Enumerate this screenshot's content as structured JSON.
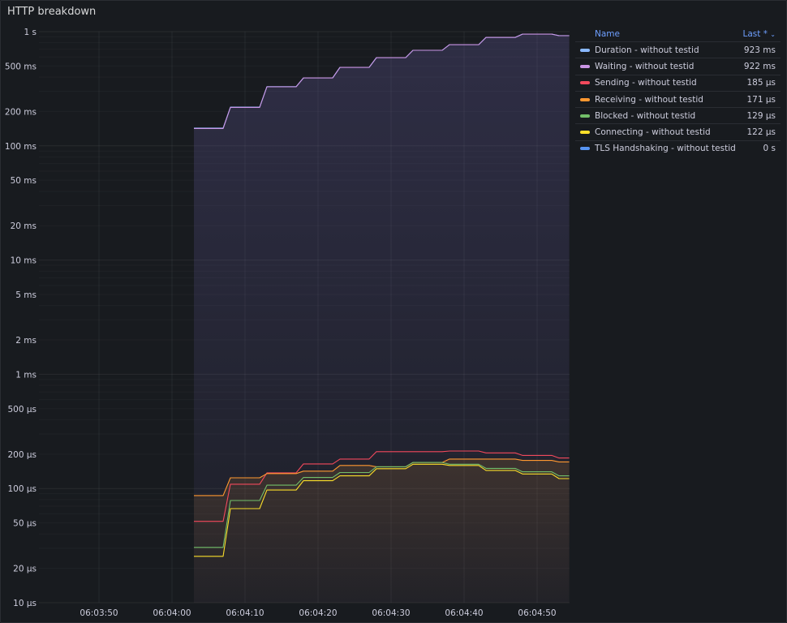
{
  "panel": {
    "title": "HTTP breakdown"
  },
  "legend": {
    "header_name": "Name",
    "header_value": "Last *",
    "sort_icon": "chevron-down-icon"
  },
  "chart_data": {
    "type": "line",
    "title": "HTTP breakdown",
    "y_scale": "log10",
    "y_unit": "µs",
    "ylim": [
      10,
      1000000
    ],
    "xlim_seconds_from_06_04_00": [
      -18.2,
      54.4
    ],
    "y_ticks": [
      {
        "v": 1000000,
        "label": "1 s"
      },
      {
        "v": 500000,
        "label": "500 ms"
      },
      {
        "v": 200000,
        "label": "200 ms"
      },
      {
        "v": 100000,
        "label": "100 ms"
      },
      {
        "v": 50000,
        "label": "50 ms"
      },
      {
        "v": 20000,
        "label": "20 ms"
      },
      {
        "v": 10000,
        "label": "10 ms"
      },
      {
        "v": 5000,
        "label": "5 ms"
      },
      {
        "v": 2000,
        "label": "2 ms"
      },
      {
        "v": 1000,
        "label": "1 ms"
      },
      {
        "v": 500,
        "label": "500 µs"
      },
      {
        "v": 200,
        "label": "200 µs"
      },
      {
        "v": 100,
        "label": "100 µs"
      },
      {
        "v": 50,
        "label": "50 µs"
      },
      {
        "v": 20,
        "label": "20 µs"
      },
      {
        "v": 10,
        "label": "10 µs"
      }
    ],
    "x_ticks": [
      {
        "t": -10,
        "label": "06:03:50"
      },
      {
        "t": 0,
        "label": "06:04:00"
      },
      {
        "t": 10,
        "label": "06:04:10"
      },
      {
        "t": 20,
        "label": "06:04:20"
      },
      {
        "t": 30,
        "label": "06:04:30"
      },
      {
        "t": 40,
        "label": "06:04:40"
      },
      {
        "t": 50,
        "label": "06:04:50"
      }
    ],
    "step_start_times": [
      3,
      8,
      13,
      18,
      23,
      28,
      33,
      38,
      43,
      48,
      53
    ],
    "series": [
      {
        "name": "Duration - without testid",
        "last": "923 ms",
        "color": "#8ab8ff",
        "values": [
          143000,
          218000,
          330000,
          394000,
          487000,
          593000,
          687000,
          770000,
          891000,
          952000,
          923000
        ]
      },
      {
        "name": "Waiting - without testid",
        "last": "922 ms",
        "color": "#ca95e5",
        "values": [
          142000,
          217000,
          329000,
          393000,
          486000,
          592000,
          686000,
          769000,
          890000,
          951000,
          922000
        ]
      },
      {
        "name": "Sending - without testid",
        "last": "185 µs",
        "color": "#f2495c",
        "values": [
          51.6,
          109,
          137,
          164,
          181,
          210,
          210,
          213,
          205,
          195,
          185
        ]
      },
      {
        "name": "Receiving - without testid",
        "last": "171 µs",
        "color": "#ff9830",
        "values": [
          86.7,
          124,
          135,
          142,
          159,
          155,
          169,
          181,
          181,
          176,
          171
        ]
      },
      {
        "name": "Blocked - without testid",
        "last": "129 µs",
        "color": "#73bf69",
        "values": [
          30.5,
          78.5,
          107,
          125,
          138,
          155,
          169,
          163,
          150,
          140,
          129
        ]
      },
      {
        "name": "Connecting - without testid",
        "last": "122 µs",
        "color": "#fade2a",
        "values": [
          25.5,
          66.7,
          97,
          117,
          129,
          149,
          163,
          159,
          144,
          134,
          122
        ]
      },
      {
        "name": "TLS Handshaking - without testid",
        "last": "0 s",
        "color": "#5794f2",
        "values": [
          0,
          0,
          0,
          0,
          0,
          0,
          0,
          0,
          0,
          0,
          0
        ]
      }
    ]
  }
}
